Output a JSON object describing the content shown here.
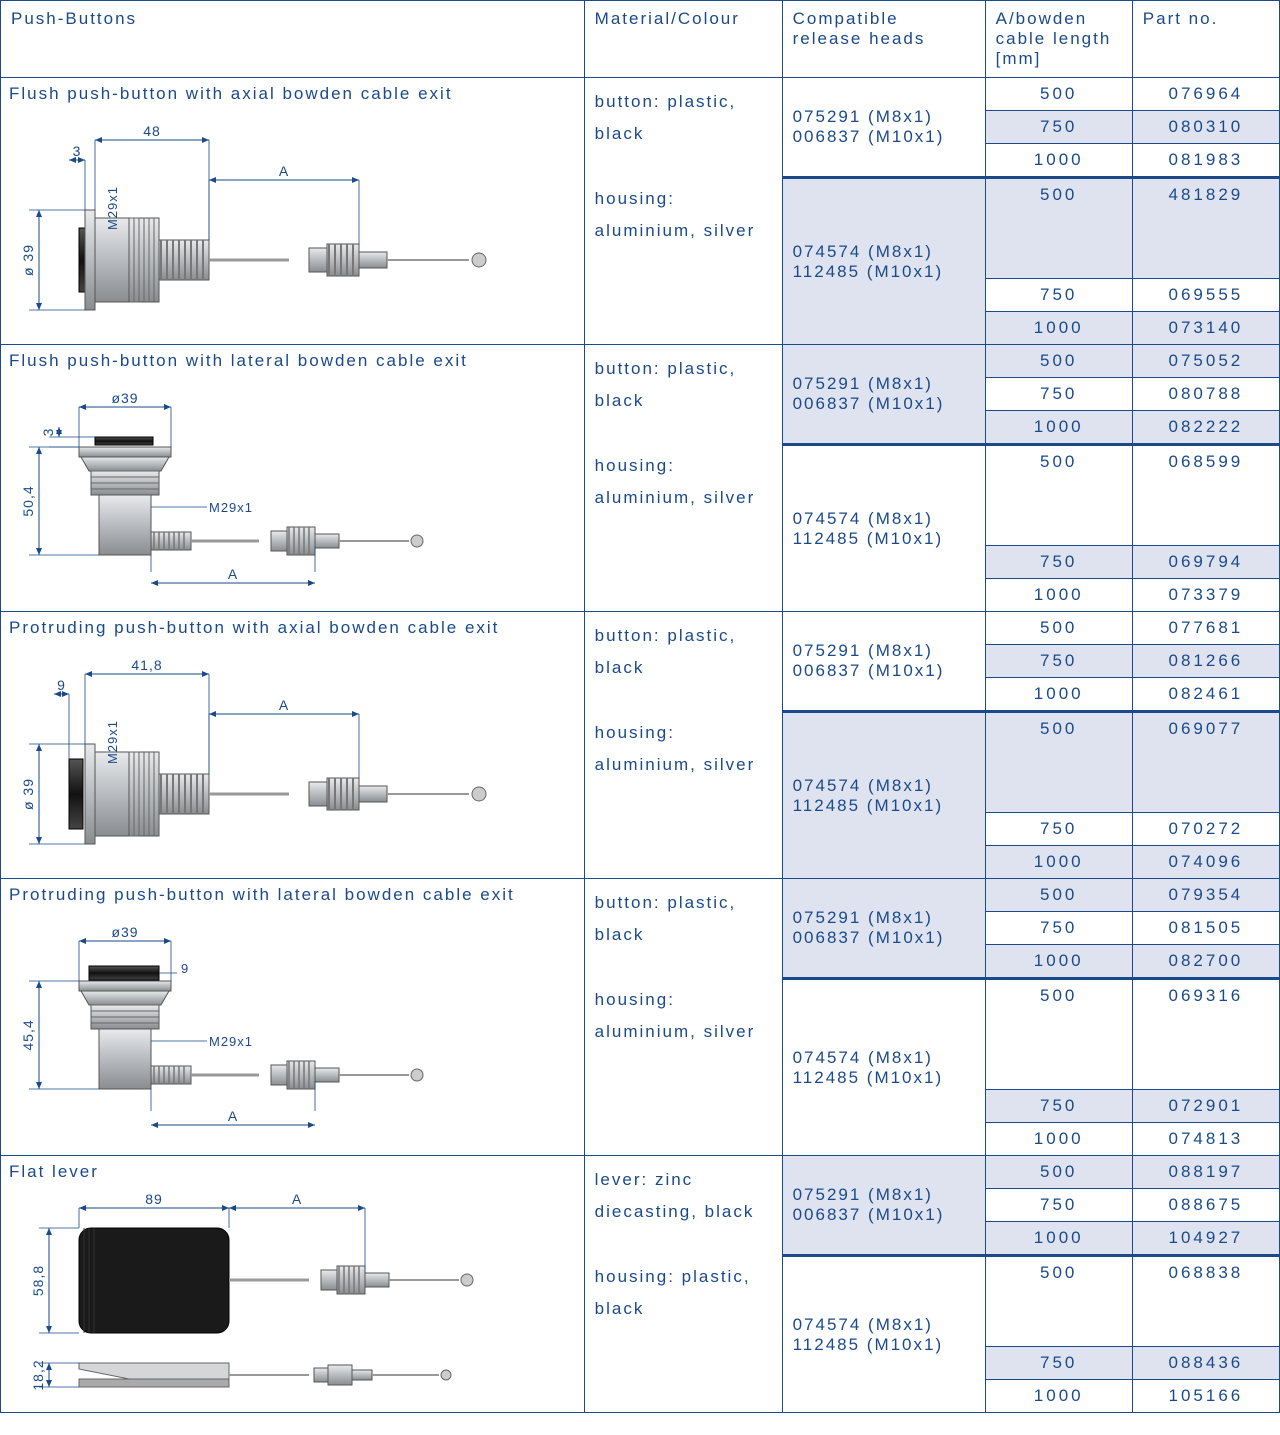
{
  "headers": {
    "c1": "Push-Buttons",
    "c2": "Material/Colour",
    "c3": "Compatible release heads",
    "c4": "A/bowden cable length [mm]",
    "c5": "Part no."
  },
  "colors": {
    "border": "#1a4a8a",
    "text": "#1a4a8a",
    "alt_bg": "#dfe3ef",
    "bg": "#ffffff",
    "diagram_metal_light": "#d4d6d8",
    "diagram_metal_dark": "#8a8d90",
    "diagram_black": "#2a2a2a",
    "diagram_line": "#1a4a8a"
  },
  "release_heads": {
    "set1_line1": "075291 (M8x1)",
    "set1_line2": "006837 (M10x1)",
    "set2_line1": "074574 (M8x1)",
    "set2_line2": "112485 (M10x1)"
  },
  "material_standard_l1": "button: plastic,",
  "material_standard_l2": "black",
  "material_standard_l3": "housing:",
  "material_standard_l4": "aluminium, silver",
  "material_lever_l1": "lever: zinc",
  "material_lever_l2": "diecasting, black",
  "material_lever_l3": "housing: plastic,",
  "material_lever_l4": "black",
  "sections": [
    {
      "title": "Flush push-button with axial bowden cable exit",
      "diagram": "flush_axial",
      "rows": [
        {
          "len": "500",
          "part": "076964",
          "alt": false
        },
        {
          "len": "750",
          "part": "080310",
          "alt": true
        },
        {
          "len": "1000",
          "part": "081983",
          "alt": false
        },
        {
          "len": "500",
          "part": "481829",
          "alt": true
        },
        {
          "len": "750",
          "part": "069555",
          "alt": false
        },
        {
          "len": "1000",
          "part": "073140",
          "alt": true
        }
      ]
    },
    {
      "title": "Flush push-button with lateral bowden cable exit",
      "diagram": "flush_lateral",
      "rows": [
        {
          "len": "500",
          "part": "075052",
          "alt": true
        },
        {
          "len": "750",
          "part": "080788",
          "alt": false
        },
        {
          "len": "1000",
          "part": "082222",
          "alt": true
        },
        {
          "len": "500",
          "part": "068599",
          "alt": false
        },
        {
          "len": "750",
          "part": "069794",
          "alt": true
        },
        {
          "len": "1000",
          "part": "073379",
          "alt": false
        }
      ]
    },
    {
      "title": "Protruding push-button with axial bowden cable exit",
      "diagram": "protruding_axial",
      "rows": [
        {
          "len": "500",
          "part": "077681",
          "alt": false
        },
        {
          "len": "750",
          "part": "081266",
          "alt": true
        },
        {
          "len": "1000",
          "part": "082461",
          "alt": false
        },
        {
          "len": "500",
          "part": "069077",
          "alt": true
        },
        {
          "len": "750",
          "part": "070272",
          "alt": false
        },
        {
          "len": "1000",
          "part": "074096",
          "alt": true
        }
      ]
    },
    {
      "title": "Protruding push-button with lateral bowden cable exit",
      "diagram": "protruding_lateral",
      "rows": [
        {
          "len": "500",
          "part": "079354",
          "alt": true
        },
        {
          "len": "750",
          "part": "081505",
          "alt": false
        },
        {
          "len": "1000",
          "part": "082700",
          "alt": true
        },
        {
          "len": "500",
          "part": "069316",
          "alt": false
        },
        {
          "len": "750",
          "part": "072901",
          "alt": true
        },
        {
          "len": "1000",
          "part": "074813",
          "alt": false
        }
      ]
    },
    {
      "title": "Flat lever",
      "diagram": "flat_lever",
      "material": "lever",
      "rows": [
        {
          "len": "500",
          "part": "088197",
          "alt": true
        },
        {
          "len": "750",
          "part": "088675",
          "alt": false
        },
        {
          "len": "1000",
          "part": "104927",
          "alt": true
        },
        {
          "len": "500",
          "part": "068838",
          "alt": false
        },
        {
          "len": "750",
          "part": "088436",
          "alt": true
        },
        {
          "len": "1000",
          "part": "105166",
          "alt": false
        }
      ]
    }
  ],
  "dims": {
    "flush_axial": {
      "d1": "3",
      "d2": "48",
      "d3": "A",
      "d4": "ø 39",
      "d5": "M29x1"
    },
    "flush_lateral": {
      "d1": "ø39",
      "d2": "3",
      "d3": "50,4",
      "d4": "M29x1",
      "d5": "A"
    },
    "protruding_axial": {
      "d1": "9",
      "d2": "41,8",
      "d3": "A",
      "d4": "ø 39",
      "d5": "M29x1"
    },
    "protruding_lateral": {
      "d1": "ø39",
      "d2": "9",
      "d3": "45,4",
      "d4": "M29x1",
      "d5": "A"
    },
    "flat_lever": {
      "d1": "89",
      "d2": "A",
      "d3": "58,8",
      "d4": "18,2"
    }
  }
}
